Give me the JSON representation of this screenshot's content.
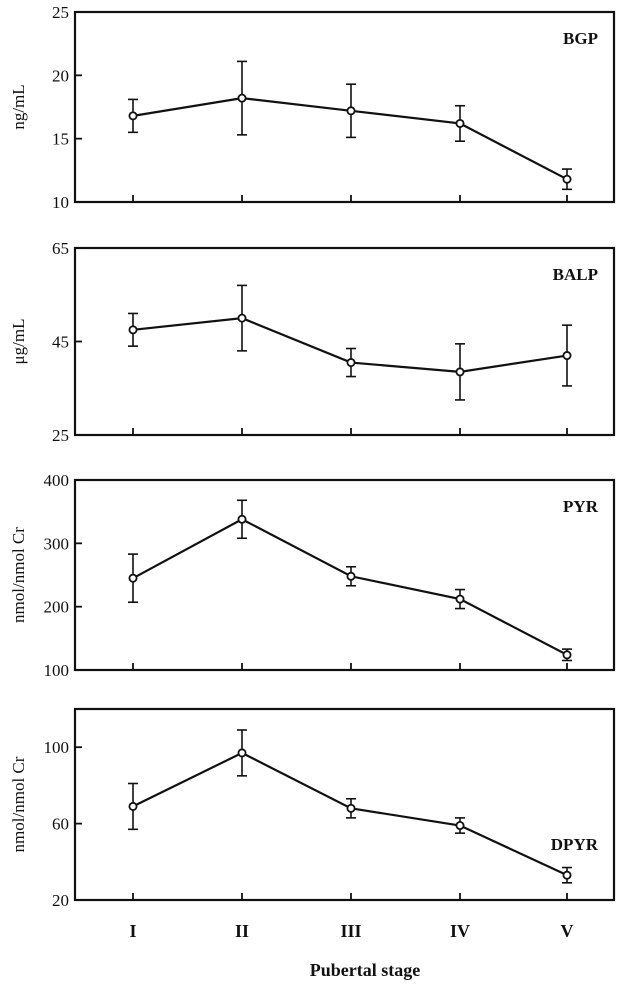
{
  "chart_data": {
    "type": "line",
    "xlabel": "Pubertal stage",
    "categories": [
      "I",
      "II",
      "III",
      "IV",
      "V"
    ],
    "panels": [
      {
        "title": "BGP",
        "ylabel": "ng/mL",
        "ylim": [
          10,
          25
        ],
        "yticks": [
          10,
          15,
          20,
          25
        ],
        "values": [
          16.8,
          18.2,
          17.2,
          16.2,
          11.8
        ],
        "error": [
          1.3,
          2.9,
          2.1,
          1.4,
          0.8
        ]
      },
      {
        "title": "BALP",
        "ylabel": "μg/mL",
        "ylim": [
          25,
          65
        ],
        "yticks": [
          25,
          45,
          65
        ],
        "values": [
          47.5,
          50.0,
          40.5,
          38.5,
          42.0
        ],
        "error": [
          3.5,
          7.0,
          3.0,
          6.0,
          6.5
        ]
      },
      {
        "title": "PYR",
        "ylabel": "nmol/nmol Cr",
        "ylim": [
          100,
          400
        ],
        "yticks": [
          100,
          200,
          300,
          400
        ],
        "values": [
          245,
          338,
          248,
          212,
          124
        ],
        "error": [
          38,
          30,
          15,
          15,
          9
        ]
      },
      {
        "title": "DPYR",
        "ylabel": "nmol/nmol Cr",
        "ylim": [
          20,
          120
        ],
        "yticks": [
          20,
          60,
          100
        ],
        "values": [
          69,
          97,
          68,
          59,
          33
        ],
        "error": [
          12,
          12,
          5,
          4,
          4
        ]
      }
    ]
  }
}
